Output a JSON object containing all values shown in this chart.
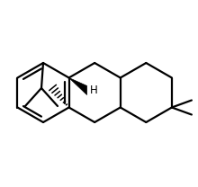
{
  "bg_color": "#ffffff",
  "line_color": "#000000",
  "line_width": 1.6,
  "font_size": 8.5,
  "fig_width": 2.2,
  "fig_height": 2.08,
  "dpi": 100
}
